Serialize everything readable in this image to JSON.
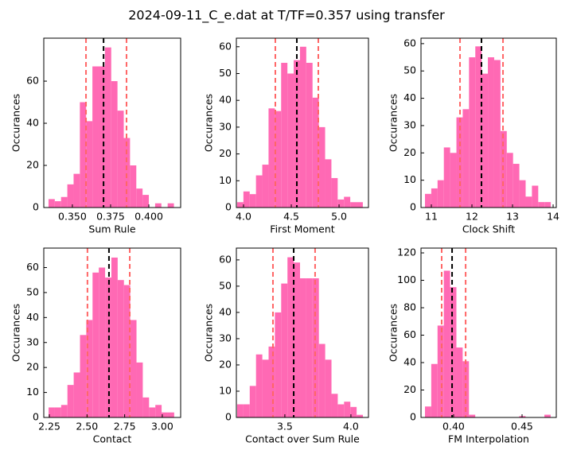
{
  "title": "2024-09-11_C_e.dat at T/TF=0.357 using transfer",
  "chart_data": [
    {
      "type": "histogram",
      "xlabel": "Sum Rule",
      "ylabel": "Occurances",
      "color": "#ff69b4",
      "bins": [
        0.3344,
        0.3385,
        0.3426,
        0.3467,
        0.3508,
        0.3549,
        0.359,
        0.3631,
        0.3672,
        0.3713,
        0.3754,
        0.3795,
        0.3836,
        0.3877,
        0.3918,
        0.3959,
        0.4,
        0.4041,
        0.4082,
        0.4123,
        0.4164
      ],
      "values": [
        4,
        3,
        5,
        11,
        16,
        50,
        41,
        67,
        67,
        76,
        60,
        46,
        33,
        20,
        9,
        6,
        0,
        2,
        0,
        2
      ],
      "xlim": [
        0.3313,
        0.4208
      ],
      "ylim": [
        0,
        80.4
      ],
      "xticks": [
        {
          "value": 0.35,
          "label": "0.350"
        },
        {
          "value": 0.375,
          "label": "0.375"
        },
        {
          "value": 0.4,
          "label": "0.400"
        }
      ],
      "yticks": [
        0,
        20,
        40,
        60
      ],
      "vlines": [
        {
          "value": 0.3704,
          "color": "#000000"
        },
        {
          "value": 0.3589,
          "color": "#ff6666"
        },
        {
          "value": 0.3854,
          "color": "#ff6666"
        }
      ]
    },
    {
      "type": "histogram",
      "xlabel": "First Moment",
      "ylabel": "Occurances",
      "color": "#ff69b4",
      "bins": [
        3.933,
        3.9988,
        4.0646,
        4.1304,
        4.1962,
        4.262,
        4.3278,
        4.3936,
        4.4594,
        4.5252,
        4.591,
        4.6568,
        4.7226,
        4.7884,
        4.8542,
        4.92,
        4.9858,
        5.0516,
        5.1174,
        5.1832,
        5.249
      ],
      "values": [
        2,
        6,
        5,
        12,
        16,
        37,
        36,
        54,
        50,
        55,
        60,
        54,
        41,
        30,
        18,
        11,
        3,
        4,
        2,
        2
      ],
      "xlim": [
        3.925,
        5.308
      ],
      "ylim": [
        0,
        63.2
      ],
      "xticks": [
        {
          "value": 4,
          "label": "4.0"
        },
        {
          "value": 4.5,
          "label": "4.5"
        },
        {
          "value": 5,
          "label": "5.0"
        }
      ],
      "yticks": [
        0,
        10,
        20,
        30,
        40,
        50,
        60
      ],
      "vlines": [
        {
          "value": 4.558,
          "color": "#000000"
        },
        {
          "value": 4.333,
          "color": "#ff6666"
        },
        {
          "value": 4.783,
          "color": "#ff6666"
        }
      ]
    },
    {
      "type": "histogram",
      "xlabel": "Clock Shift",
      "ylabel": "Occurances",
      "color": "#ff69b4",
      "bins": [
        10.843,
        10.998,
        11.153,
        11.308,
        11.463,
        11.618,
        11.773,
        11.928,
        12.083,
        12.238,
        12.393,
        12.548,
        12.703,
        12.858,
        13.013,
        13.168,
        13.323,
        13.478,
        13.633,
        13.788,
        13.943
      ],
      "values": [
        5,
        7,
        10,
        22,
        20,
        33,
        36,
        55,
        59,
        49,
        55,
        54,
        28,
        20,
        16,
        10,
        4,
        8,
        2,
        2
      ],
      "xlim": [
        10.745,
        14.078
      ],
      "ylim": [
        0,
        62
      ],
      "xticks": [
        11,
        12,
        13,
        14
      ],
      "yticks": [
        0,
        10,
        20,
        30,
        40,
        50,
        60
      ],
      "vlines": [
        {
          "value": 12.235,
          "color": "#000000"
        },
        {
          "value": 11.706,
          "color": "#ff6666"
        },
        {
          "value": 12.765,
          "color": "#ff6666"
        }
      ]
    },
    {
      "type": "histogram",
      "xlabel": "Contact",
      "ylabel": "Occurances",
      "color": "#ff69b4",
      "bins": [
        2.245,
        2.2867,
        2.3284,
        2.3701,
        2.4118,
        2.4535,
        2.4952,
        2.5369,
        2.5786,
        2.6203,
        2.662,
        2.7037,
        2.7454,
        2.7871,
        2.8288,
        2.8705,
        2.9122,
        2.9539,
        2.9956,
        3.0373,
        3.079
      ],
      "values": [
        4,
        4,
        5,
        13,
        18,
        33,
        39,
        58,
        60,
        56,
        64,
        55,
        53,
        39,
        22,
        8,
        4,
        5,
        2,
        2
      ],
      "xlim": [
        2.213,
        3.122
      ],
      "ylim": [
        0,
        67.8
      ],
      "xticks": [
        {
          "value": 2.25,
          "label": "2.25"
        },
        {
          "value": 2.5,
          "label": "2.50"
        },
        {
          "value": 2.75,
          "label": "2.75"
        },
        {
          "value": 3,
          "label": "3.00"
        }
      ],
      "yticks": [
        0,
        10,
        20,
        30,
        40,
        50,
        60
      ],
      "vlines": [
        {
          "value": 2.646,
          "color": "#000000"
        },
        {
          "value": 2.503,
          "color": "#ff6666"
        },
        {
          "value": 2.784,
          "color": "#ff6666"
        }
      ]
    },
    {
      "type": "histogram",
      "xlabel": "Contact over Sum Rule",
      "ylabel": "Occurances",
      "color": "#ff69b4",
      "bins": [
        3.139,
        3.1866,
        3.2342,
        3.2818,
        3.3294,
        3.377,
        3.4246,
        3.4722,
        3.5198,
        3.5674,
        3.615,
        3.6626,
        3.7102,
        3.7578,
        3.8054,
        3.853,
        3.9006,
        3.9482,
        3.9958,
        4.0434,
        4.091
      ],
      "values": [
        5,
        5,
        12,
        24,
        22,
        27,
        40,
        51,
        61,
        59,
        53,
        53,
        53,
        28,
        22,
        9,
        5,
        6,
        4,
        1
      ],
      "xlim": [
        3.133,
        4.133
      ],
      "ylim": [
        0,
        64.5
      ],
      "xticks": [
        {
          "value": 3.5,
          "label": "3.5"
        },
        {
          "value": 4,
          "label": "4.0"
        }
      ],
      "yticks": [
        0,
        10,
        20,
        30,
        40,
        50,
        60
      ],
      "vlines": [
        {
          "value": 3.567,
          "color": "#000000"
        },
        {
          "value": 3.41,
          "color": "#ff6666"
        },
        {
          "value": 3.729,
          "color": "#ff6666"
        }
      ]
    },
    {
      "type": "histogram",
      "xlabel": "FM Interpolation",
      "ylabel": "Occurances",
      "color": "#ff69b4",
      "bins": [
        0.3791,
        0.38369,
        0.38828,
        0.39287,
        0.39746,
        0.40205,
        0.40664,
        0.41123,
        0.41582,
        0.42041,
        0.425,
        0.42959,
        0.43418,
        0.43877,
        0.44336,
        0.44795,
        0.45254,
        0.45713,
        0.46172,
        0.46631,
        0.4709
      ],
      "values": [
        8,
        39,
        67,
        107,
        95,
        51,
        41,
        2,
        0,
        0,
        0,
        0,
        0,
        0,
        0,
        1,
        0,
        0,
        0,
        2
      ],
      "xlim": [
        0.3762,
        0.475
      ],
      "ylim": [
        0,
        123.5
      ],
      "xticks": [
        {
          "value": 0.4,
          "label": "0.40"
        },
        {
          "value": 0.45,
          "label": "0.45"
        }
      ],
      "yticks": [
        0,
        20,
        40,
        60,
        80,
        100,
        120
      ],
      "vlines": [
        {
          "value": 0.3989,
          "color": "#000000"
        },
        {
          "value": 0.3913,
          "color": "#ff6666"
        },
        {
          "value": 0.4088,
          "color": "#ff6666"
        }
      ]
    }
  ]
}
